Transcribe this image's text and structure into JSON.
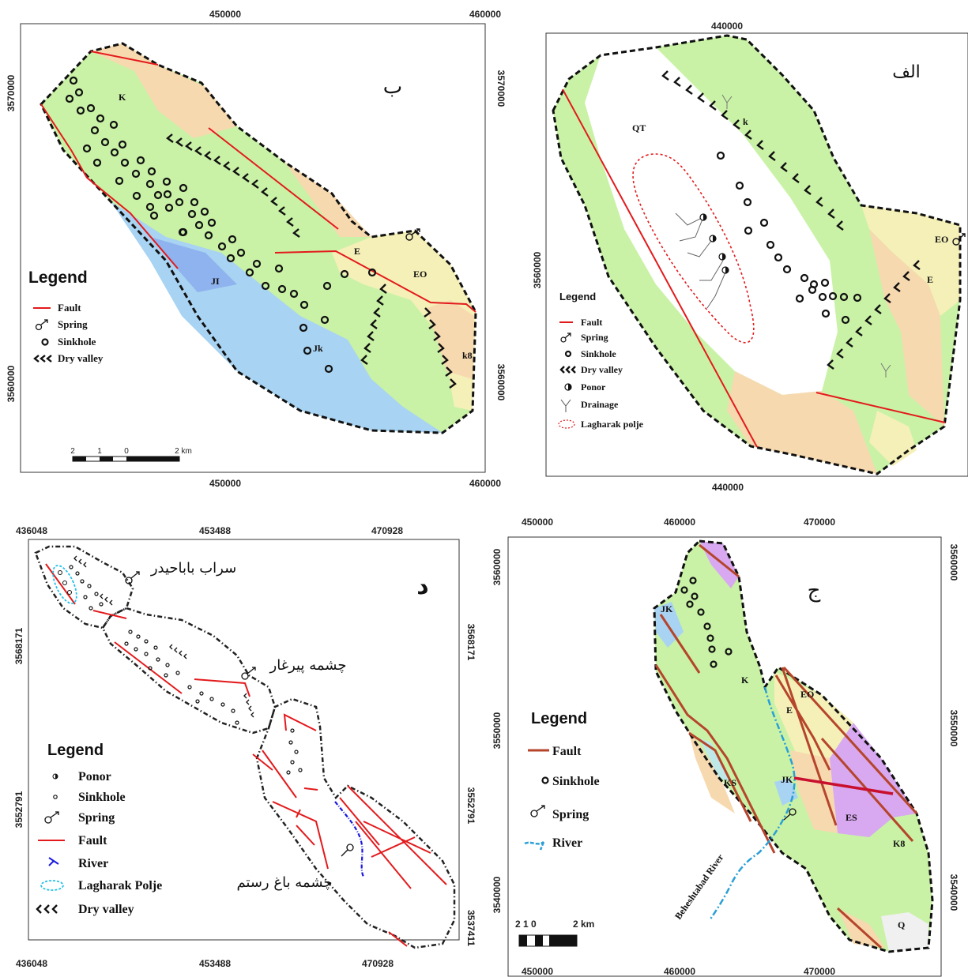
{
  "map_b": {
    "label": "ب",
    "x_ticks": [
      "450000",
      "460000"
    ],
    "y_ticks": [
      "3570000",
      "3560000"
    ],
    "units": [
      "K",
      "E",
      "EO",
      "JI",
      "Jk",
      "k8"
    ],
    "legend": {
      "title": "Legend",
      "items": [
        "Fault",
        "Spring",
        "Sinkhole",
        "Dry valley"
      ]
    },
    "scale": {
      "ticks": [
        "2",
        "1",
        "0",
        "2 km"
      ]
    }
  },
  "map_alef": {
    "label": "الف",
    "x_ticks": [
      "440000"
    ],
    "y_ticks": [
      "3560000"
    ],
    "units": [
      "QT",
      "k",
      "EO",
      "E"
    ],
    "legend": {
      "title": "Legend",
      "items": [
        "Fault",
        "Spring",
        "Sinkhole",
        "Dry valley",
        "Ponor",
        "Drainage",
        "Lagharak polje"
      ]
    }
  },
  "map_dal": {
    "label": "د",
    "x_ticks": [
      "436048",
      "453488",
      "470928"
    ],
    "y_ticks_left": [
      "3568171",
      "3552791"
    ],
    "y_ticks_right": [
      "3568171",
      "3552791",
      "3537411"
    ],
    "places": [
      "سراب باباحیدر",
      "چشمه پیرغار",
      "چشمه باغ رستم"
    ],
    "legend": {
      "title": "Legend",
      "items": [
        "Ponor",
        "Sinkhole",
        "Spring",
        "Fault",
        "River",
        "Lagharak Polje",
        "Dry valley"
      ]
    }
  },
  "map_jim": {
    "label": "ج",
    "x_ticks": [
      "450000",
      "460000",
      "470000"
    ],
    "y_ticks": [
      "3560000",
      "3550000",
      "3540000"
    ],
    "units": [
      "JK",
      "K",
      "EO",
      "E",
      "KS",
      "JK",
      "ES",
      "K8",
      "Q"
    ],
    "river_name": "Beheshtabad River",
    "legend": {
      "title": "Legend",
      "items": [
        "Fault",
        "Sinkhole",
        "Spring",
        "River"
      ]
    },
    "scale": {
      "ticks": [
        "2 1 0",
        "2 km"
      ]
    }
  },
  "colors": {
    "green": "#c9f2a6",
    "yellow": "#f5f0b8",
    "orange": "#f7d9b0",
    "blue": "#a9d3f2",
    "purple": "#d8a8f0",
    "fault": "#e31a1c",
    "fault_dark": "#b5452b",
    "river": "#2a9fd6"
  }
}
